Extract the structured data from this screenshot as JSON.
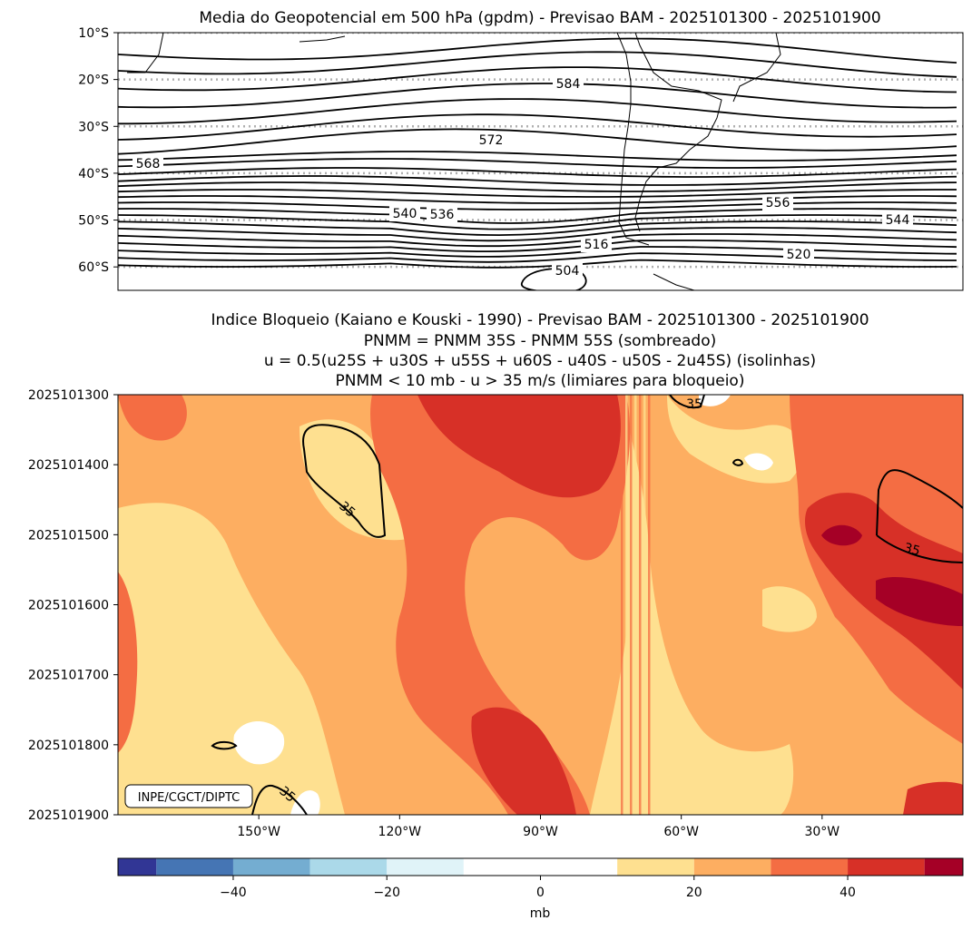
{
  "chart_data": [
    {
      "type": "contour",
      "title": "Media do Geopotencial em 500 hPa (gpdm) - Previsao BAM - 2025101300 - 2025101900",
      "ylabel_ticks": [
        "10°S",
        "20°S",
        "30°S",
        "40°S",
        "50°S",
        "60°S"
      ],
      "ylim": [
        -65,
        -10
      ],
      "contour_labels": [
        "584",
        "572",
        "568",
        "556",
        "540",
        "536",
        "544",
        "516",
        "520",
        "504"
      ],
      "contour_levels_gpdm": [
        504,
        508,
        512,
        516,
        520,
        524,
        528,
        532,
        536,
        540,
        544,
        548,
        552,
        556,
        560,
        564,
        568,
        572,
        576,
        580,
        584
      ],
      "grid": "dotted latitude lines"
    },
    {
      "type": "heatmap",
      "title_lines": [
        "Indice Bloqueio (Kaiano e Kouski - 1990) - Previsao BAM - 2025101300 - 2025101900",
        "PNMM = PNMM 35S - PNMM 55S (sombreado)",
        "u = 0.5(u25S + u30S + u55S + u60S - u40S - u50S - 2u45S) (isolinhas)",
        "PNMM < 10 mb - u > 35 m/s (limiares para bloqueio)"
      ],
      "y_categories": [
        "2025101300",
        "2025101400",
        "2025101500",
        "2025101600",
        "2025101700",
        "2025101800",
        "2025101900"
      ],
      "x_ticks": [
        "150°W",
        "120°W",
        "90°W",
        "60°W",
        "30°W"
      ],
      "x_tick_values": [
        -150,
        -120,
        -90,
        -60,
        -30
      ],
      "xlim": [
        -180,
        0
      ],
      "contour_level": 35,
      "contour_labels": [
        "35",
        "35",
        "35",
        "35"
      ],
      "watermark": "INPE/CGCT/DIPTC",
      "colorbar": {
        "label": "mb",
        "range": [
          -55,
          55
        ],
        "ticks": [
          "−40",
          "−20",
          "0",
          "20",
          "40"
        ],
        "tick_values": [
          -40,
          -20,
          0,
          20,
          40
        ],
        "bounds": [
          -55,
          -50,
          -40,
          -30,
          -20,
          -10,
          10,
          20,
          30,
          40,
          50,
          55
        ],
        "colors": [
          "#313695",
          "#4575b4",
          "#74add1",
          "#abd9e9",
          "#e0f3f8",
          "#ffffff",
          "#fee090",
          "#fdae61",
          "#f46d43",
          "#d73027",
          "#a50026"
        ]
      }
    }
  ]
}
